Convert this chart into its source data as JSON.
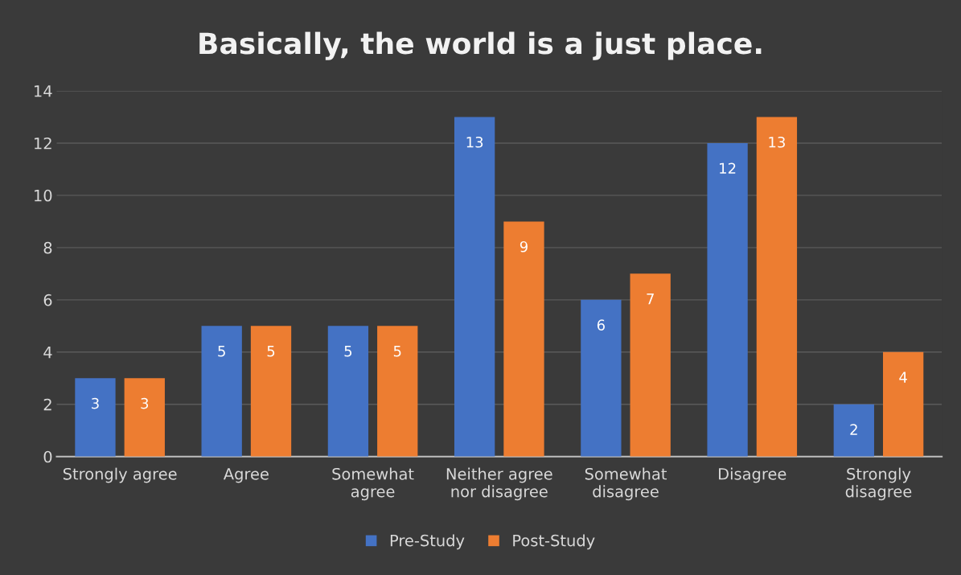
{
  "chart_data": {
    "type": "bar",
    "title": "Basically, the world is a just place.",
    "categories": [
      "Strongly agree",
      "Agree",
      "Somewhat\nagree",
      "Neither agree\nnor disagree",
      "Somewhat\ndisagree",
      "Disagree",
      "Strongly\ndisagree"
    ],
    "series": [
      {
        "name": "Pre-Study",
        "color": "#4472c4",
        "values": [
          3,
          5,
          5,
          13,
          6,
          12,
          2
        ]
      },
      {
        "name": "Post-Study",
        "color": "#ed7d31",
        "values": [
          3,
          5,
          5,
          9,
          7,
          13,
          4
        ]
      }
    ],
    "ylim": [
      0,
      14
    ],
    "yticks": [
      0,
      2,
      4,
      6,
      8,
      10,
      12,
      14
    ],
    "grid": "y",
    "legend": "bottom",
    "data_labels": true
  }
}
